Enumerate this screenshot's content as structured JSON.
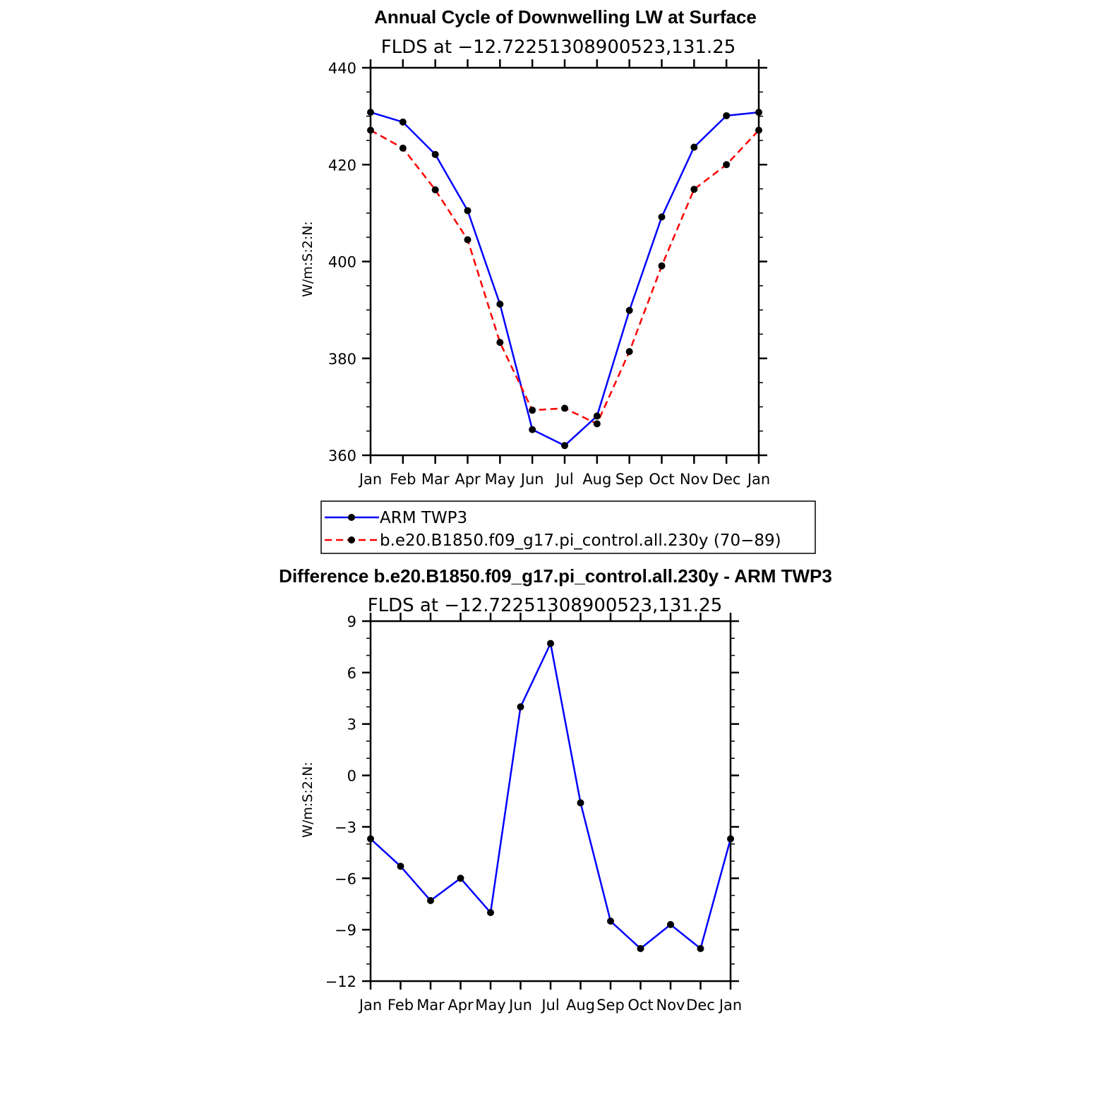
{
  "chart_data": [
    {
      "type": "line",
      "title": "Annual Cycle of Downwelling LW at Surface",
      "subtitle": "FLDS at −12.72251308900523,131.25",
      "ylabel": "W/m:S:2:N:",
      "xlabel": "",
      "categories": [
        "Jan",
        "Feb",
        "Mar",
        "Apr",
        "May",
        "Jun",
        "Jul",
        "Aug",
        "Sep",
        "Oct",
        "Nov",
        "Dec",
        "Jan"
      ],
      "ylim": [
        360,
        440
      ],
      "yticks": [
        "360",
        "380",
        "400",
        "420",
        "440"
      ],
      "grid": false,
      "legend_position": "bottom",
      "series": [
        {
          "name": "ARM TWP3",
          "color": "#0000ff",
          "dash": "solid",
          "values": [
            430.8,
            428.8,
            422.1,
            410.5,
            391.2,
            365.3,
            362.0,
            368.1,
            389.9,
            409.2,
            423.6,
            430.1,
            430.8
          ]
        },
        {
          "name": "b.e20.B1850.f09_g17.pi_control.all.230y (70−89)",
          "color": "#ff0000",
          "dash": "dashed",
          "values": [
            427.1,
            423.4,
            414.8,
            404.5,
            383.3,
            369.3,
            369.7,
            366.5,
            381.4,
            399.1,
            414.9,
            420.0,
            427.1
          ]
        }
      ]
    },
    {
      "type": "line",
      "title": "Difference b.e20.B1850.f09_g17.pi_control.all.230y - ARM TWP3",
      "subtitle": "FLDS at −12.72251308900523,131.25",
      "ylabel": "W/m:S:2:N:",
      "xlabel": "",
      "categories": [
        "Jan",
        "Feb",
        "Mar",
        "Apr",
        "May",
        "Jun",
        "Jul",
        "Aug",
        "Sep",
        "Oct",
        "Nov",
        "Dec",
        "Jan"
      ],
      "ylim": [
        -12,
        9
      ],
      "yticks": [
        "−12",
        "−9",
        "−6",
        "−3",
        "0",
        "3",
        "6",
        "9"
      ],
      "grid": false,
      "series": [
        {
          "color": "#0000ff",
          "dash": "solid",
          "values": [
            -3.7,
            -5.3,
            -7.3,
            -6.0,
            -8.0,
            4.0,
            7.7,
            -1.6,
            -8.5,
            -10.1,
            -8.7,
            -10.1,
            -3.7
          ]
        }
      ]
    }
  ]
}
